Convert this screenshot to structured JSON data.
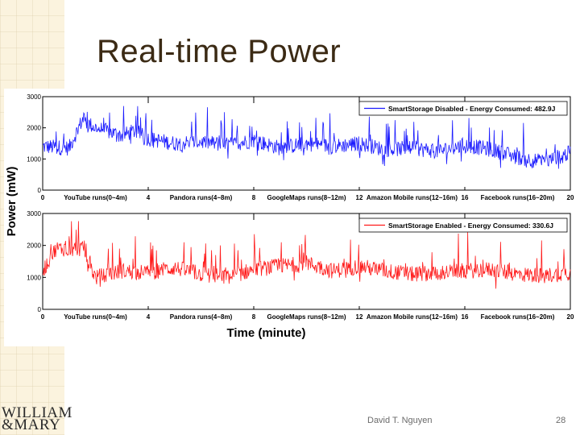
{
  "slide": {
    "title": "Real-time Power",
    "footer_author": "David T. Nguyen",
    "page_number": "28",
    "logo_line1": "WILLIAM",
    "logo_line2": "&MARY"
  },
  "colors": {
    "disabled_series": "#1a1aff",
    "enabled_series": "#ff1a1a",
    "title": "#3b2a14"
  },
  "chart_data": [
    {
      "type": "line",
      "ylabel": "Power (mW)",
      "xlabel": "",
      "xlim": [
        0,
        20
      ],
      "ylim": [
        0,
        3000
      ],
      "x_ticks": [
        "0",
        "4",
        "8",
        "12",
        "16",
        "20"
      ],
      "y_ticks": [
        "0",
        "1000",
        "2000",
        "3000"
      ],
      "segment_labels": [
        "YouTube runs(0~4m)",
        "Pandora runs(4~8m)",
        "GoogleMaps runs(8~12m)",
        "Amazon Mobile runs(12~16m)",
        "Facebook runs(16~20m)"
      ],
      "legend_position": "top-right",
      "series": [
        {
          "name": "SmartStorage Disabled - Energy Consumed: 482.9J",
          "x": [
            0,
            1,
            1.5,
            2,
            3,
            3.5,
            4,
            5,
            6,
            7,
            8,
            9,
            10,
            11,
            12,
            13,
            14,
            15,
            16,
            17,
            18,
            19,
            20
          ],
          "y": [
            1400,
            1350,
            2250,
            2000,
            1750,
            1900,
            1650,
            1500,
            1550,
            1450,
            1600,
            1350,
            1500,
            1400,
            1500,
            1300,
            1350,
            1250,
            1450,
            1300,
            1050,
            900,
            1200
          ]
        }
      ]
    },
    {
      "type": "line",
      "ylabel": "",
      "xlabel": "Time (minute)",
      "xlim": [
        0,
        20
      ],
      "ylim": [
        0,
        3000
      ],
      "x_ticks": [
        "0",
        "4",
        "8",
        "12",
        "16",
        "20"
      ],
      "y_ticks": [
        "0",
        "1000",
        "2000",
        "3000"
      ],
      "segment_labels": [
        "YouTube runs(0~4m)",
        "Pandora runs(4~8m)",
        "GoogleMaps runs(8~12m)",
        "Amazon Mobile runs(12~16m)",
        "Facebook runs(16~20m)"
      ],
      "legend_position": "top-right",
      "series": [
        {
          "name": "SmartStorage Enabled - Energy Consumed: 330.6J",
          "x": [
            0,
            0.5,
            1,
            1.5,
            2,
            2.5,
            3,
            4,
            5,
            6,
            7,
            8,
            9,
            10,
            11,
            12,
            13,
            14,
            15,
            16,
            17,
            18,
            19,
            20
          ],
          "y": [
            1200,
            1900,
            1900,
            1900,
            1000,
            1100,
            1200,
            1150,
            1300,
            1100,
            1000,
            1250,
            1350,
            1450,
            1200,
            1350,
            1200,
            1100,
            1150,
            1200,
            1250,
            1100,
            1050,
            1150
          ]
        }
      ]
    }
  ]
}
